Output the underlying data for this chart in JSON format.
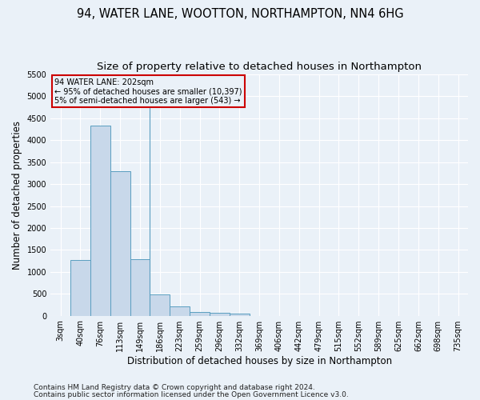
{
  "title_line1": "94, WATER LANE, WOOTTON, NORTHAMPTON, NN4 6HG",
  "title_line2": "Size of property relative to detached houses in Northampton",
  "xlabel": "Distribution of detached houses by size in Northampton",
  "ylabel": "Number of detached properties",
  "footnote_line1": "Contains HM Land Registry data © Crown copyright and database right 2024.",
  "footnote_line2": "Contains public sector information licensed under the Open Government Licence v3.0.",
  "annotation_title": "94 WATER LANE: 202sqm",
  "annotation_line2": "← 95% of detached houses are smaller (10,397)",
  "annotation_line3": "5% of semi-detached houses are larger (543) →",
  "bar_labels": [
    "3sqm",
    "40sqm",
    "76sqm",
    "113sqm",
    "149sqm",
    "186sqm",
    "223sqm",
    "259sqm",
    "296sqm",
    "332sqm",
    "369sqm",
    "406sqm",
    "442sqm",
    "479sqm",
    "515sqm",
    "552sqm",
    "589sqm",
    "625sqm",
    "662sqm",
    "698sqm",
    "735sqm"
  ],
  "bar_values": [
    0,
    1270,
    4330,
    3300,
    1280,
    490,
    210,
    90,
    60,
    55,
    0,
    0,
    0,
    0,
    0,
    0,
    0,
    0,
    0,
    0,
    0
  ],
  "bar_color": "#c8d8ea",
  "bar_edge_color": "#5a9ec0",
  "vline_x": 4.5,
  "ylim": [
    0,
    5500
  ],
  "yticks": [
    0,
    500,
    1000,
    1500,
    2000,
    2500,
    3000,
    3500,
    4000,
    4500,
    5000,
    5500
  ],
  "bg_color": "#eaf1f8",
  "grid_color": "#ffffff",
  "annotation_box_color": "#cc0000",
  "title_fontsize": 10.5,
  "subtitle_fontsize": 9.5,
  "axis_label_fontsize": 8.5,
  "tick_fontsize": 7,
  "footnote_fontsize": 6.5
}
